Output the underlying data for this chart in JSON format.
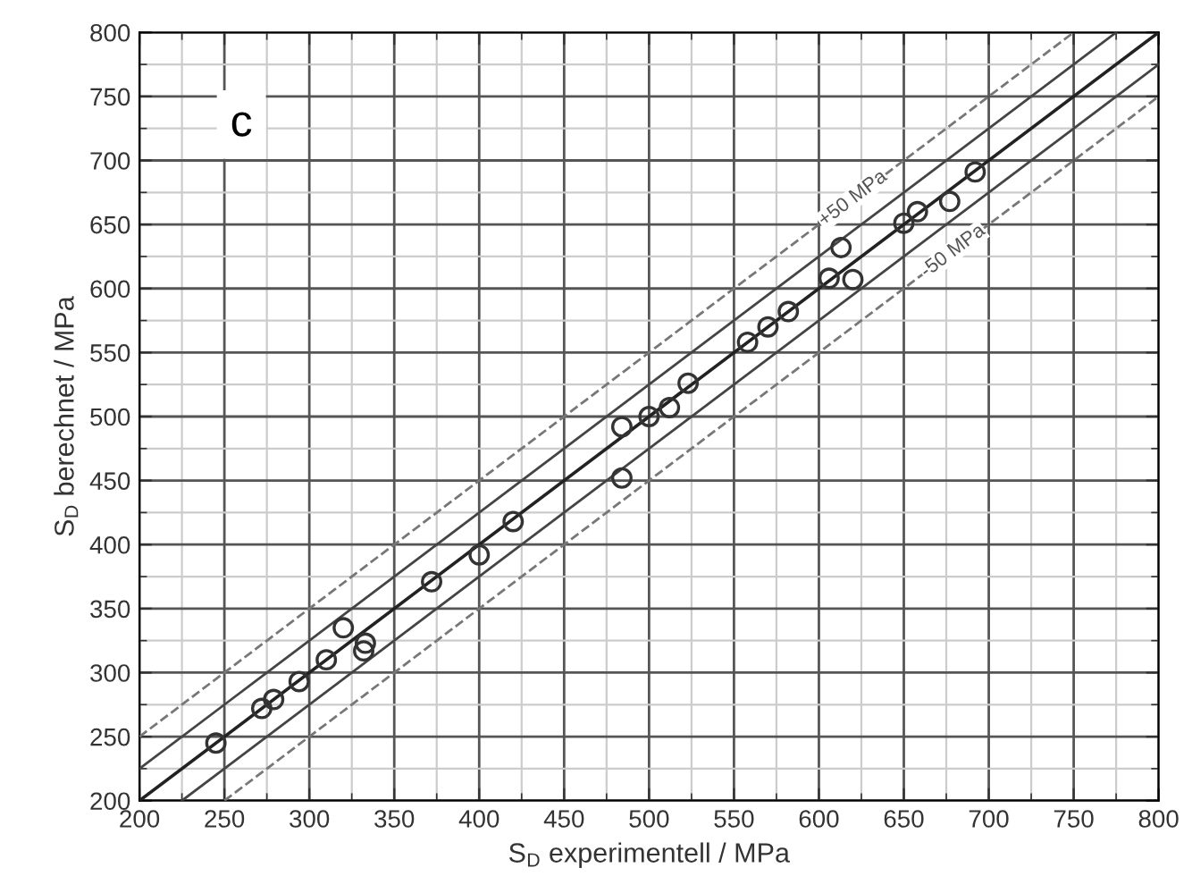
{
  "chart_data": {
    "type": "scatter",
    "xlabel": "S$_{D}$ experimentell / MPa",
    "ylabel": "S$_{D}$ berechnet / MPa",
    "annotations": [
      "c",
      {
        "text": "+50 MPa",
        "x": 620,
        "y": 670
      },
      {
        "text": "-50 MPa",
        "x": 679,
        "y": 629
      }
    ],
    "series": [
      {
        "type": "line",
        "color": "#222222",
        "line_style": "solid",
        "marker": "none",
        "x": [
          200,
          800
        ],
        "values": [
          200,
          800
        ]
      },
      {
        "type": "line",
        "color": "#444444",
        "line_style": "solid",
        "marker": "none",
        "x": [
          200,
          775
        ],
        "values": [
          225,
          800
        ]
      },
      {
        "type": "line",
        "color": "#444444",
        "line_style": "solid",
        "marker": "none",
        "x": [
          225,
          800
        ],
        "values": [
          200,
          775
        ]
      },
      {
        "type": "line",
        "color": "#777777",
        "line_style": "dashed",
        "marker": "none",
        "x": [
          200,
          750
        ],
        "values": [
          250,
          800
        ]
      },
      {
        "type": "line",
        "color": "#777777",
        "line_style": "dashed",
        "marker": "none",
        "x": [
          250,
          800
        ],
        "values": [
          200,
          750
        ]
      },
      {
        "color": "#333333",
        "marker": "circle",
        "x": [
          245,
          272,
          279,
          294,
          310,
          320,
          332,
          333,
          372,
          400,
          420,
          484,
          484,
          500,
          512,
          523,
          558,
          570,
          582,
          606,
          613,
          620,
          650,
          658,
          677,
          692
        ],
        "values": [
          245,
          272,
          279,
          293,
          310,
          335,
          317,
          323,
          371,
          392,
          418,
          492,
          452,
          500,
          507,
          526,
          558,
          570,
          582,
          608,
          632,
          607,
          651,
          660,
          668,
          691
        ]
      }
    ],
    "xlim": [
      200,
      800
    ],
    "ylim": [
      200,
      800
    ],
    "xticks": [
      200,
      {
        "value": 225,
        "label": null
      },
      250,
      {
        "value": 275,
        "label": null
      },
      300,
      {
        "value": 325,
        "label": null
      },
      350,
      {
        "value": 375,
        "label": null
      },
      400,
      {
        "value": 425,
        "label": null
      },
      450,
      {
        "value": 475,
        "label": null
      },
      500,
      {
        "value": 525,
        "label": null
      },
      550,
      {
        "value": 575,
        "label": null
      },
      600,
      {
        "value": 625,
        "label": null
      },
      650,
      {
        "value": 675,
        "label": null
      },
      700,
      {
        "value": 725,
        "label": null
      },
      750,
      {
        "value": 775,
        "label": null
      },
      800
    ],
    "yticks": [
      200,
      {
        "value": 225,
        "label": null
      },
      250,
      {
        "value": 275,
        "label": null
      },
      300,
      {
        "value": 325,
        "label": null
      },
      350,
      {
        "value": 375,
        "label": null
      },
      400,
      {
        "value": 425,
        "label": null
      },
      450,
      {
        "value": 475,
        "label": null
      },
      500,
      {
        "value": 525,
        "label": null
      },
      550,
      {
        "value": 575,
        "label": null
      },
      600,
      {
        "value": 625,
        "label": null
      },
      650,
      {
        "value": 675,
        "label": null
      },
      700,
      {
        "value": 725,
        "label": null
      },
      750,
      {
        "value": 775,
        "label": null
      },
      800
    ],
    "grid": true
  }
}
